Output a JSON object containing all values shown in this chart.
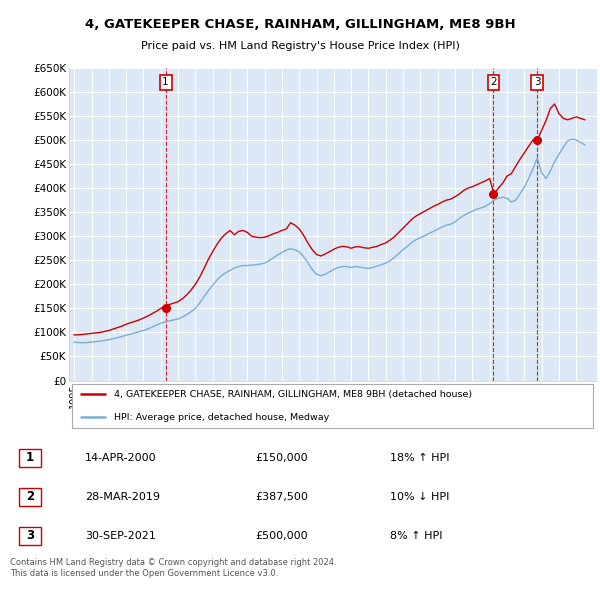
{
  "title": "4, GATEKEEPER CHASE, RAINHAM, GILLINGHAM, ME8 9BH",
  "subtitle": "Price paid vs. HM Land Registry's House Price Index (HPI)",
  "ylabel_ticks": [
    "£0",
    "£50K",
    "£100K",
    "£150K",
    "£200K",
    "£250K",
    "£300K",
    "£350K",
    "£400K",
    "£450K",
    "£500K",
    "£550K",
    "£600K",
    "£650K"
  ],
  "ytick_values": [
    0,
    50000,
    100000,
    150000,
    200000,
    250000,
    300000,
    350000,
    400000,
    450000,
    500000,
    550000,
    600000,
    650000
  ],
  "ylim": [
    0,
    650000
  ],
  "red_line_color": "#cc0000",
  "blue_line_color": "#7aaed6",
  "plot_bg": "#dce8f5",
  "sales": [
    {
      "date_num": 2000.28,
      "price": 150000,
      "label": "1"
    },
    {
      "date_num": 2019.22,
      "price": 387500,
      "label": "2"
    },
    {
      "date_num": 2021.75,
      "price": 500000,
      "label": "3"
    }
  ],
  "legend_entries": [
    "4, GATEKEEPER CHASE, RAINHAM, GILLINGHAM, ME8 9BH (detached house)",
    "HPI: Average price, detached house, Medway"
  ],
  "table_rows": [
    [
      "1",
      "14-APR-2000",
      "£150,000",
      "18% ↑ HPI"
    ],
    [
      "2",
      "28-MAR-2019",
      "£387,500",
      "10% ↓ HPI"
    ],
    [
      "3",
      "30-SEP-2021",
      "£500,000",
      "8% ↑ HPI"
    ]
  ],
  "footer": "Contains HM Land Registry data © Crown copyright and database right 2024.\nThis data is licensed under the Open Government Licence v3.0.",
  "hpi_data_x": [
    1995.0,
    1995.25,
    1995.5,
    1995.75,
    1996.0,
    1996.25,
    1996.5,
    1996.75,
    1997.0,
    1997.25,
    1997.5,
    1997.75,
    1998.0,
    1998.25,
    1998.5,
    1998.75,
    1999.0,
    1999.25,
    1999.5,
    1999.75,
    2000.0,
    2000.25,
    2000.5,
    2000.75,
    2001.0,
    2001.25,
    2001.5,
    2001.75,
    2002.0,
    2002.25,
    2002.5,
    2002.75,
    2003.0,
    2003.25,
    2003.5,
    2003.75,
    2004.0,
    2004.25,
    2004.5,
    2004.75,
    2005.0,
    2005.25,
    2005.5,
    2005.75,
    2006.0,
    2006.25,
    2006.5,
    2006.75,
    2007.0,
    2007.25,
    2007.5,
    2007.75,
    2008.0,
    2008.25,
    2008.5,
    2008.75,
    2009.0,
    2009.25,
    2009.5,
    2009.75,
    2010.0,
    2010.25,
    2010.5,
    2010.75,
    2011.0,
    2011.25,
    2011.5,
    2011.75,
    2012.0,
    2012.25,
    2012.5,
    2012.75,
    2013.0,
    2013.25,
    2013.5,
    2013.75,
    2014.0,
    2014.25,
    2014.5,
    2014.75,
    2015.0,
    2015.25,
    2015.5,
    2015.75,
    2016.0,
    2016.25,
    2016.5,
    2016.75,
    2017.0,
    2017.25,
    2017.5,
    2017.75,
    2018.0,
    2018.25,
    2018.5,
    2018.75,
    2019.0,
    2019.25,
    2019.5,
    2019.75,
    2020.0,
    2020.25,
    2020.5,
    2020.75,
    2021.0,
    2021.25,
    2021.5,
    2021.75,
    2022.0,
    2022.25,
    2022.5,
    2022.75,
    2023.0,
    2023.25,
    2023.5,
    2023.75,
    2024.0,
    2024.25,
    2024.5
  ],
  "hpi_data_y": [
    80000,
    79000,
    78500,
    79000,
    80000,
    81000,
    82000,
    83500,
    85000,
    87000,
    89000,
    91500,
    94000,
    96500,
    99000,
    101500,
    104000,
    107000,
    111000,
    115500,
    119000,
    122000,
    124000,
    126000,
    128000,
    132000,
    137000,
    143000,
    150000,
    161000,
    174000,
    187000,
    198000,
    209000,
    218000,
    224000,
    229000,
    234000,
    237000,
    239000,
    239000,
    240000,
    241000,
    242000,
    244000,
    249000,
    255000,
    261000,
    266000,
    271000,
    274000,
    272000,
    267000,
    258000,
    245000,
    231000,
    221000,
    218000,
    221000,
    226000,
    231000,
    235000,
    237000,
    237000,
    235000,
    237000,
    236000,
    234000,
    233000,
    235000,
    238000,
    241000,
    244000,
    249000,
    256000,
    264000,
    272000,
    279000,
    287000,
    293000,
    297000,
    301000,
    306000,
    310000,
    315000,
    319000,
    323000,
    325000,
    330000,
    337000,
    343000,
    348000,
    352000,
    356000,
    359000,
    362000,
    368000,
    375000,
    379000,
    381000,
    379000,
    371000,
    375000,
    388000,
    402000,
    420000,
    440000,
    463000,
    432000,
    420000,
    435000,
    455000,
    470000,
    485000,
    498000,
    502000,
    500000,
    495000,
    490000
  ],
  "red_data_x": [
    1995.0,
    1995.25,
    1995.5,
    1995.75,
    1996.0,
    1996.25,
    1996.5,
    1996.75,
    1997.0,
    1997.25,
    1997.5,
    1997.75,
    1998.0,
    1998.25,
    1998.5,
    1998.75,
    1999.0,
    1999.25,
    1999.5,
    1999.75,
    2000.0,
    2000.25,
    2000.5,
    2000.75,
    2001.0,
    2001.25,
    2001.5,
    2001.75,
    2002.0,
    2002.25,
    2002.5,
    2002.75,
    2003.0,
    2003.25,
    2003.5,
    2003.75,
    2004.0,
    2004.25,
    2004.5,
    2004.75,
    2005.0,
    2005.25,
    2005.5,
    2005.75,
    2006.0,
    2006.25,
    2006.5,
    2006.75,
    2007.0,
    2007.25,
    2007.5,
    2007.75,
    2008.0,
    2008.25,
    2008.5,
    2008.75,
    2009.0,
    2009.25,
    2009.5,
    2009.75,
    2010.0,
    2010.25,
    2010.5,
    2010.75,
    2011.0,
    2011.25,
    2011.5,
    2011.75,
    2012.0,
    2012.25,
    2012.5,
    2012.75,
    2013.0,
    2013.25,
    2013.5,
    2013.75,
    2014.0,
    2014.25,
    2014.5,
    2014.75,
    2015.0,
    2015.25,
    2015.5,
    2015.75,
    2016.0,
    2016.25,
    2016.5,
    2016.75,
    2017.0,
    2017.25,
    2017.5,
    2017.75,
    2018.0,
    2018.25,
    2018.5,
    2018.75,
    2019.0,
    2019.25,
    2019.5,
    2019.75,
    2020.0,
    2020.25,
    2020.5,
    2020.75,
    2021.0,
    2021.25,
    2021.5,
    2021.75,
    2022.0,
    2022.25,
    2022.5,
    2022.75,
    2023.0,
    2023.25,
    2023.5,
    2023.75,
    2024.0,
    2024.25,
    2024.5
  ],
  "red_data_y": [
    95000,
    95000,
    96000,
    97000,
    98000,
    99000,
    100000,
    102000,
    104000,
    107000,
    110000,
    113000,
    117000,
    120000,
    123000,
    126000,
    130000,
    134000,
    139000,
    144000,
    150000,
    155000,
    158000,
    161000,
    164000,
    170000,
    178000,
    188000,
    200000,
    215000,
    233000,
    252000,
    268000,
    283000,
    296000,
    305000,
    312000,
    303000,
    310000,
    312000,
    308000,
    300000,
    298000,
    297000,
    298000,
    301000,
    305000,
    308000,
    312000,
    315000,
    328000,
    323000,
    315000,
    302000,
    286000,
    272000,
    262000,
    259000,
    263000,
    268000,
    273000,
    277000,
    279000,
    278000,
    275000,
    278000,
    278000,
    276000,
    275000,
    277000,
    279000,
    283000,
    286000,
    292000,
    299000,
    308000,
    317000,
    326000,
    335000,
    342000,
    347000,
    352000,
    357000,
    362000,
    366000,
    371000,
    375000,
    377000,
    382000,
    388000,
    395000,
    400000,
    403000,
    407000,
    411000,
    415000,
    420000,
    387500,
    400000,
    410000,
    425000,
    430000,
    445000,
    460000,
    473000,
    487000,
    500000,
    500000,
    520000,
    540000,
    565000,
    575000,
    555000,
    545000,
    542000,
    545000,
    548000,
    545000,
    542000
  ]
}
